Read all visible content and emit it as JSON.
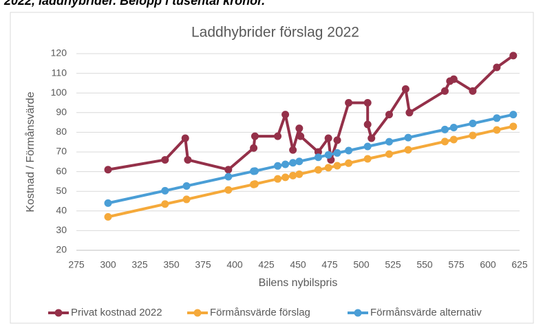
{
  "caption": "2022, laddhybrider. Belopp i tusental kronor.",
  "chart_data": {
    "type": "line",
    "title": "Laddhybrider förslag 2022",
    "x_label": "Bilens nybilspris",
    "y_label": "Kostnad / Förmånsvärde",
    "xlim": [
      275,
      625
    ],
    "xticks": [
      275,
      300,
      325,
      350,
      375,
      400,
      425,
      450,
      475,
      500,
      525,
      550,
      575,
      600,
      625
    ],
    "ylim": [
      20,
      120
    ],
    "yticks": [
      20,
      30,
      40,
      50,
      60,
      70,
      80,
      90,
      100,
      110,
      120
    ],
    "grid": true,
    "legend": "bottom",
    "series": [
      {
        "name": "Privat kostnad 2022",
        "color": "#943049",
        "x": [
          300,
          345,
          361,
          363,
          395,
          415,
          416,
          434,
          440,
          446,
          451,
          452,
          466,
          474,
          476,
          481,
          490,
          505,
          505,
          508,
          522,
          535,
          538,
          566,
          570,
          573,
          588,
          607,
          620
        ],
        "values": [
          61,
          66,
          77,
          66,
          61,
          72,
          78,
          78,
          89,
          71,
          82,
          78,
          70,
          77,
          66,
          76,
          95,
          95,
          84,
          77,
          89,
          102,
          90,
          101,
          106,
          107,
          101,
          113,
          119
        ]
      },
      {
        "name": "Förmånsvärde förslag",
        "color": "#f5a93a",
        "x": [
          300,
          345,
          362,
          395,
          415,
          416,
          434,
          440,
          446,
          451,
          466,
          474,
          481,
          490,
          505,
          522,
          537,
          566,
          573,
          588,
          607,
          620
        ],
        "values": [
          37,
          43.5,
          45.9,
          50.7,
          53.5,
          53.7,
          56.3,
          57.1,
          58,
          58.7,
          60.9,
          62,
          63,
          64.3,
          66.5,
          68.9,
          71.1,
          75.3,
          76.3,
          78.4,
          81.2,
          83
        ]
      },
      {
        "name": "Förmånsvärde alternativ",
        "color": "#4a9ed6",
        "x": [
          300,
          345,
          362,
          395,
          415,
          416,
          434,
          440,
          446,
          451,
          466,
          474,
          481,
          490,
          505,
          522,
          537,
          566,
          573,
          588,
          607,
          620
        ],
        "values": [
          44,
          50.3,
          52.7,
          57.4,
          60.2,
          60.3,
          62.9,
          63.7,
          64.5,
          65.2,
          67.3,
          68.5,
          69.5,
          70.7,
          72.8,
          75.2,
          77.3,
          81.4,
          82.4,
          84.5,
          87.2,
          89
        ]
      }
    ]
  }
}
